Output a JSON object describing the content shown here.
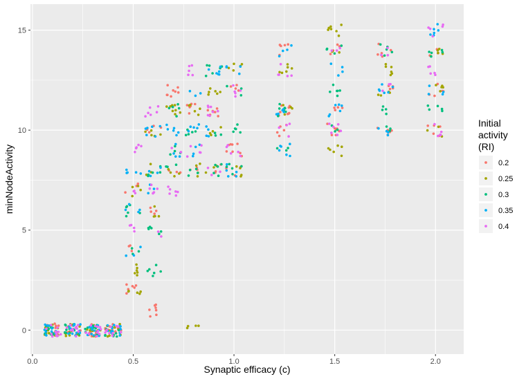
{
  "chart_data": {
    "type": "scatter",
    "title": "",
    "xlabel": "Synaptic efficacy (c)",
    "ylabel": "minNodeActivity",
    "xlim": [
      -0.01,
      2.14
    ],
    "ylim": [
      -1.2,
      16.3
    ],
    "x_ticks": [
      "0.0",
      "0.5",
      "1.0",
      "1.5",
      "2.0"
    ],
    "x_tick_values": [
      0.0,
      0.5,
      1.0,
      1.5,
      2.0
    ],
    "y_ticks": [
      "0",
      "5",
      "10",
      "15"
    ],
    "y_tick_values": [
      0,
      5,
      10,
      15
    ],
    "grid": true,
    "background": "#ebebeb",
    "grid_color": "#ffffff",
    "legend": {
      "title_lines": [
        "Initial",
        "activity",
        "(RI)"
      ],
      "placement": "right"
    },
    "jitter_width": 0.04,
    "series": [
      {
        "name": "0.2",
        "color": "#F8766D",
        "clusters": [
          {
            "x": 0.1,
            "y": 0,
            "n": 12
          },
          {
            "x": 0.2,
            "y": 0,
            "n": 12
          },
          {
            "x": 0.3,
            "y": 0,
            "n": 12
          },
          {
            "x": 0.4,
            "y": 0,
            "n": 12
          },
          {
            "x": 0.5,
            "y": 2,
            "n": 6
          },
          {
            "x": 0.5,
            "y": 4,
            "n": 3
          },
          {
            "x": 0.5,
            "y": 7,
            "n": 3
          },
          {
            "x": 0.6,
            "y": 1,
            "n": 7
          },
          {
            "x": 0.6,
            "y": 6,
            "n": 4
          },
          {
            "x": 0.6,
            "y": 10,
            "n": 4
          },
          {
            "x": 0.7,
            "y": 12,
            "n": 8
          },
          {
            "x": 0.7,
            "y": 8,
            "n": 3
          },
          {
            "x": 0.8,
            "y": 11,
            "n": 6
          },
          {
            "x": 0.8,
            "y": 8,
            "n": 3
          },
          {
            "x": 0.9,
            "y": 11,
            "n": 7
          },
          {
            "x": 0.9,
            "y": 8,
            "n": 3
          },
          {
            "x": 1.0,
            "y": 9,
            "n": 8
          },
          {
            "x": 1.0,
            "y": 12,
            "n": 4
          },
          {
            "x": 1.0,
            "y": 8,
            "n": 3
          },
          {
            "x": 1.25,
            "y": 14,
            "n": 5
          },
          {
            "x": 1.25,
            "y": 11,
            "n": 8
          },
          {
            "x": 1.25,
            "y": 10,
            "n": 5
          },
          {
            "x": 1.5,
            "y": 10,
            "n": 8
          },
          {
            "x": 1.5,
            "y": 14,
            "n": 4
          },
          {
            "x": 1.5,
            "y": 11,
            "n": 4
          },
          {
            "x": 1.75,
            "y": 14,
            "n": 5
          },
          {
            "x": 1.75,
            "y": 12,
            "n": 4
          },
          {
            "x": 1.75,
            "y": 10,
            "n": 5
          },
          {
            "x": 2.0,
            "y": 12,
            "n": 5
          },
          {
            "x": 2.0,
            "y": 10,
            "n": 5
          },
          {
            "x": 2.0,
            "y": 14,
            "n": 3
          }
        ]
      },
      {
        "name": "0.25",
        "color": "#A3A500",
        "clusters": [
          {
            "x": 0.1,
            "y": 0,
            "n": 12
          },
          {
            "x": 0.2,
            "y": 0,
            "n": 12
          },
          {
            "x": 0.3,
            "y": 0,
            "n": 12
          },
          {
            "x": 0.4,
            "y": 0,
            "n": 10
          },
          {
            "x": 0.5,
            "y": 2,
            "n": 5
          },
          {
            "x": 0.5,
            "y": 3,
            "n": 6
          },
          {
            "x": 0.5,
            "y": 7,
            "n": 4
          },
          {
            "x": 0.6,
            "y": 10,
            "n": 5
          },
          {
            "x": 0.6,
            "y": 6,
            "n": 4
          },
          {
            "x": 0.6,
            "y": 8,
            "n": 3
          },
          {
            "x": 0.7,
            "y": 11,
            "n": 8
          },
          {
            "x": 0.7,
            "y": 8,
            "n": 4
          },
          {
            "x": 0.8,
            "y": 0,
            "n": 4
          },
          {
            "x": 0.8,
            "y": 11,
            "n": 5
          },
          {
            "x": 0.8,
            "y": 8,
            "n": 4
          },
          {
            "x": 0.9,
            "y": 12,
            "n": 6
          },
          {
            "x": 0.9,
            "y": 10,
            "n": 4
          },
          {
            "x": 0.9,
            "y": 8,
            "n": 3
          },
          {
            "x": 1.0,
            "y": 13,
            "n": 5
          },
          {
            "x": 1.0,
            "y": 8,
            "n": 4
          },
          {
            "x": 1.25,
            "y": 13,
            "n": 6
          },
          {
            "x": 1.25,
            "y": 11,
            "n": 5
          },
          {
            "x": 1.5,
            "y": 15,
            "n": 7
          },
          {
            "x": 1.5,
            "y": 9,
            "n": 6
          },
          {
            "x": 1.5,
            "y": 14,
            "n": 3
          },
          {
            "x": 1.75,
            "y": 13,
            "n": 6
          },
          {
            "x": 1.75,
            "y": 12,
            "n": 4
          },
          {
            "x": 2.0,
            "y": 14,
            "n": 5
          },
          {
            "x": 2.0,
            "y": 12,
            "n": 5
          },
          {
            "x": 2.0,
            "y": 10,
            "n": 3
          }
        ]
      },
      {
        "name": "0.3",
        "color": "#00BF7D",
        "clusters": [
          {
            "x": 0.1,
            "y": 0,
            "n": 12
          },
          {
            "x": 0.2,
            "y": 0,
            "n": 12
          },
          {
            "x": 0.3,
            "y": 0,
            "n": 12
          },
          {
            "x": 0.4,
            "y": 0,
            "n": 10
          },
          {
            "x": 0.5,
            "y": 6,
            "n": 6
          },
          {
            "x": 0.5,
            "y": 4,
            "n": 3
          },
          {
            "x": 0.6,
            "y": 3,
            "n": 6
          },
          {
            "x": 0.6,
            "y": 5,
            "n": 6
          },
          {
            "x": 0.6,
            "y": 8,
            "n": 5
          },
          {
            "x": 0.7,
            "y": 11,
            "n": 5
          },
          {
            "x": 0.7,
            "y": 9,
            "n": 4
          },
          {
            "x": 0.7,
            "y": 8,
            "n": 3
          },
          {
            "x": 0.8,
            "y": 10,
            "n": 5
          },
          {
            "x": 0.8,
            "y": 8,
            "n": 4
          },
          {
            "x": 0.9,
            "y": 13,
            "n": 6
          },
          {
            "x": 0.9,
            "y": 8,
            "n": 5
          },
          {
            "x": 0.9,
            "y": 10,
            "n": 3
          },
          {
            "x": 1.0,
            "y": 10,
            "n": 5
          },
          {
            "x": 1.0,
            "y": 8,
            "n": 5
          },
          {
            "x": 1.0,
            "y": 12,
            "n": 3
          },
          {
            "x": 1.25,
            "y": 11,
            "n": 7
          },
          {
            "x": 1.25,
            "y": 9,
            "n": 3
          },
          {
            "x": 1.5,
            "y": 12,
            "n": 6
          },
          {
            "x": 1.5,
            "y": 14,
            "n": 4
          },
          {
            "x": 1.5,
            "y": 10,
            "n": 3
          },
          {
            "x": 1.75,
            "y": 14,
            "n": 5
          },
          {
            "x": 1.75,
            "y": 11,
            "n": 4
          },
          {
            "x": 1.75,
            "y": 10,
            "n": 3
          },
          {
            "x": 2.0,
            "y": 14,
            "n": 5
          },
          {
            "x": 2.0,
            "y": 11,
            "n": 5
          }
        ]
      },
      {
        "name": "0.35",
        "color": "#00B0F6",
        "clusters": [
          {
            "x": 0.1,
            "y": 0,
            "n": 12
          },
          {
            "x": 0.2,
            "y": 0,
            "n": 12
          },
          {
            "x": 0.3,
            "y": 0,
            "n": 12
          },
          {
            "x": 0.4,
            "y": 0,
            "n": 12
          },
          {
            "x": 0.5,
            "y": 8,
            "n": 5
          },
          {
            "x": 0.5,
            "y": 6,
            "n": 4
          },
          {
            "x": 0.5,
            "y": 4,
            "n": 3
          },
          {
            "x": 0.6,
            "y": 10,
            "n": 6
          },
          {
            "x": 0.6,
            "y": 8,
            "n": 4
          },
          {
            "x": 0.6,
            "y": 7,
            "n": 3
          },
          {
            "x": 0.7,
            "y": 10,
            "n": 6
          },
          {
            "x": 0.7,
            "y": 9,
            "n": 4
          },
          {
            "x": 0.8,
            "y": 12,
            "n": 3
          },
          {
            "x": 0.8,
            "y": 10,
            "n": 5
          },
          {
            "x": 0.8,
            "y": 9,
            "n": 4
          },
          {
            "x": 0.9,
            "y": 13,
            "n": 6
          },
          {
            "x": 0.9,
            "y": 10,
            "n": 4
          },
          {
            "x": 1.0,
            "y": 13,
            "n": 4
          },
          {
            "x": 1.0,
            "y": 8,
            "n": 5
          },
          {
            "x": 1.25,
            "y": 14,
            "n": 4
          },
          {
            "x": 1.25,
            "y": 11,
            "n": 5
          },
          {
            "x": 1.25,
            "y": 9,
            "n": 6
          },
          {
            "x": 1.5,
            "y": 11,
            "n": 6
          },
          {
            "x": 1.5,
            "y": 13,
            "n": 4
          },
          {
            "x": 1.75,
            "y": 12,
            "n": 6
          },
          {
            "x": 1.75,
            "y": 10,
            "n": 4
          },
          {
            "x": 2.0,
            "y": 15,
            "n": 6
          },
          {
            "x": 2.0,
            "y": 12,
            "n": 4
          }
        ]
      },
      {
        "name": "0.4",
        "color": "#E76BF3",
        "clusters": [
          {
            "x": 0.1,
            "y": 0,
            "n": 12
          },
          {
            "x": 0.2,
            "y": 0,
            "n": 12
          },
          {
            "x": 0.3,
            "y": 0,
            "n": 12
          },
          {
            "x": 0.4,
            "y": 0,
            "n": 10
          },
          {
            "x": 0.5,
            "y": 9,
            "n": 5
          },
          {
            "x": 0.5,
            "y": 7,
            "n": 3
          },
          {
            "x": 0.5,
            "y": 5,
            "n": 4
          },
          {
            "x": 0.6,
            "y": 11,
            "n": 6
          },
          {
            "x": 0.6,
            "y": 7,
            "n": 5
          },
          {
            "x": 0.6,
            "y": 5,
            "n": 2
          },
          {
            "x": 0.7,
            "y": 7,
            "n": 6
          },
          {
            "x": 0.7,
            "y": 9,
            "n": 3
          },
          {
            "x": 0.8,
            "y": 13,
            "n": 5
          },
          {
            "x": 0.8,
            "y": 9,
            "n": 5
          },
          {
            "x": 0.9,
            "y": 11,
            "n": 7
          },
          {
            "x": 0.9,
            "y": 8,
            "n": 3
          },
          {
            "x": 1.0,
            "y": 9,
            "n": 5
          },
          {
            "x": 1.0,
            "y": 12,
            "n": 5
          },
          {
            "x": 1.25,
            "y": 13,
            "n": 5
          },
          {
            "x": 1.25,
            "y": 10,
            "n": 4
          },
          {
            "x": 1.5,
            "y": 10,
            "n": 6
          },
          {
            "x": 1.5,
            "y": 14,
            "n": 3
          },
          {
            "x": 1.75,
            "y": 14,
            "n": 3
          },
          {
            "x": 1.75,
            "y": 12,
            "n": 3
          },
          {
            "x": 2.0,
            "y": 15,
            "n": 5
          },
          {
            "x": 2.0,
            "y": 13,
            "n": 5
          },
          {
            "x": 2.0,
            "y": 10,
            "n": 5
          }
        ]
      }
    ]
  }
}
